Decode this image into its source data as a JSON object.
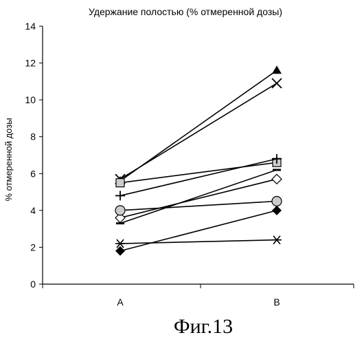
{
  "chart_data": {
    "type": "line",
    "title": "Удержание полостью (% отмеренной дозы)",
    "xlabel": "",
    "ylabel": "% отмеренной дозы",
    "categories": [
      "A",
      "B"
    ],
    "ylim": [
      0,
      14
    ],
    "yticks": [
      "0",
      "2",
      "4",
      "6",
      "8",
      "10",
      "12",
      "14"
    ],
    "grid": false,
    "legend": "none",
    "series": [
      {
        "marker": "triangle-filled",
        "values": [
          5.6,
          11.6
        ]
      },
      {
        "marker": "cross-x",
        "values": [
          5.7,
          10.9
        ]
      },
      {
        "marker": "square-dotted",
        "values": [
          5.5,
          6.6
        ]
      },
      {
        "marker": "plus",
        "values": [
          4.8,
          6.8
        ]
      },
      {
        "marker": "diamond-open",
        "values": [
          3.6,
          5.7
        ]
      },
      {
        "marker": "dash",
        "values": [
          3.3,
          6.2
        ]
      },
      {
        "marker": "circle-open",
        "values": [
          4.0,
          4.5
        ]
      },
      {
        "marker": "diamond-filled",
        "values": [
          1.8,
          4.0
        ]
      },
      {
        "marker": "asterisk",
        "values": [
          2.2,
          2.4
        ]
      }
    ]
  },
  "caption": "Фиг.13",
  "colors": {
    "ink": "#000000",
    "marker_fill": "#cccccc",
    "background": "#ffffff"
  }
}
